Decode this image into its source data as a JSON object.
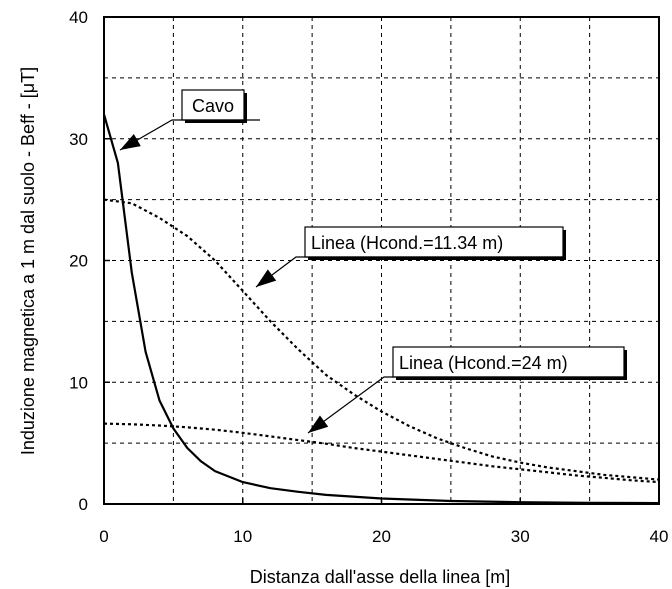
{
  "chart_data": {
    "type": "line",
    "title": "",
    "xlabel": "Distanza dall'asse della linea [m]",
    "ylabel": "Induzione magnetica a 1 m dal suolo - Beff - [μT]",
    "xlim": [
      0,
      40
    ],
    "ylim": [
      0,
      40
    ],
    "x_ticks": [
      "0",
      "10",
      "20",
      "30",
      "40"
    ],
    "y_ticks": [
      "0",
      "10",
      "20",
      "30",
      "40"
    ],
    "grid": true,
    "series": [
      {
        "name": "Cavo",
        "style": "solid",
        "x": [
          0,
          1,
          2,
          3,
          4,
          5,
          6,
          7,
          8,
          10,
          12,
          14,
          16,
          20,
          25,
          30,
          35,
          40
        ],
        "y": [
          32,
          28,
          19,
          12.5,
          8.5,
          6.2,
          4.6,
          3.5,
          2.7,
          1.8,
          1.3,
          1.0,
          0.75,
          0.45,
          0.25,
          0.15,
          0.1,
          0.07
        ]
      },
      {
        "name": "Linea (Hcond.=11.34 m)",
        "style": "dashed",
        "x": [
          0,
          2,
          4,
          6,
          8,
          10,
          12,
          14,
          16,
          18,
          20,
          22,
          24,
          26,
          28,
          30,
          32,
          34,
          36,
          38,
          40
        ],
        "y": [
          25,
          24.7,
          23.5,
          22,
          20,
          17.5,
          15,
          12.7,
          10.6,
          9,
          7.6,
          6.4,
          5.4,
          4.6,
          3.9,
          3.4,
          3.0,
          2.7,
          2.4,
          2.2,
          2.0
        ]
      },
      {
        "name": "Linea (Hcond.=24 m)",
        "style": "dashed",
        "x": [
          0,
          2,
          4,
          6,
          8,
          10,
          12,
          14,
          16,
          18,
          20,
          22,
          24,
          26,
          28,
          30,
          32,
          34,
          36,
          38,
          40
        ],
        "y": [
          6.6,
          6.55,
          6.45,
          6.3,
          6.1,
          5.85,
          5.55,
          5.25,
          4.95,
          4.6,
          4.3,
          4.0,
          3.7,
          3.4,
          3.1,
          2.85,
          2.6,
          2.35,
          2.15,
          1.95,
          1.8
        ]
      }
    ],
    "annotations": [
      {
        "label": "Cavo",
        "series": 0
      },
      {
        "label": "Linea (Hcond.=11.34 m)",
        "series": 1
      },
      {
        "label": "Linea (Hcond.=24 m)",
        "series": 2
      }
    ]
  }
}
